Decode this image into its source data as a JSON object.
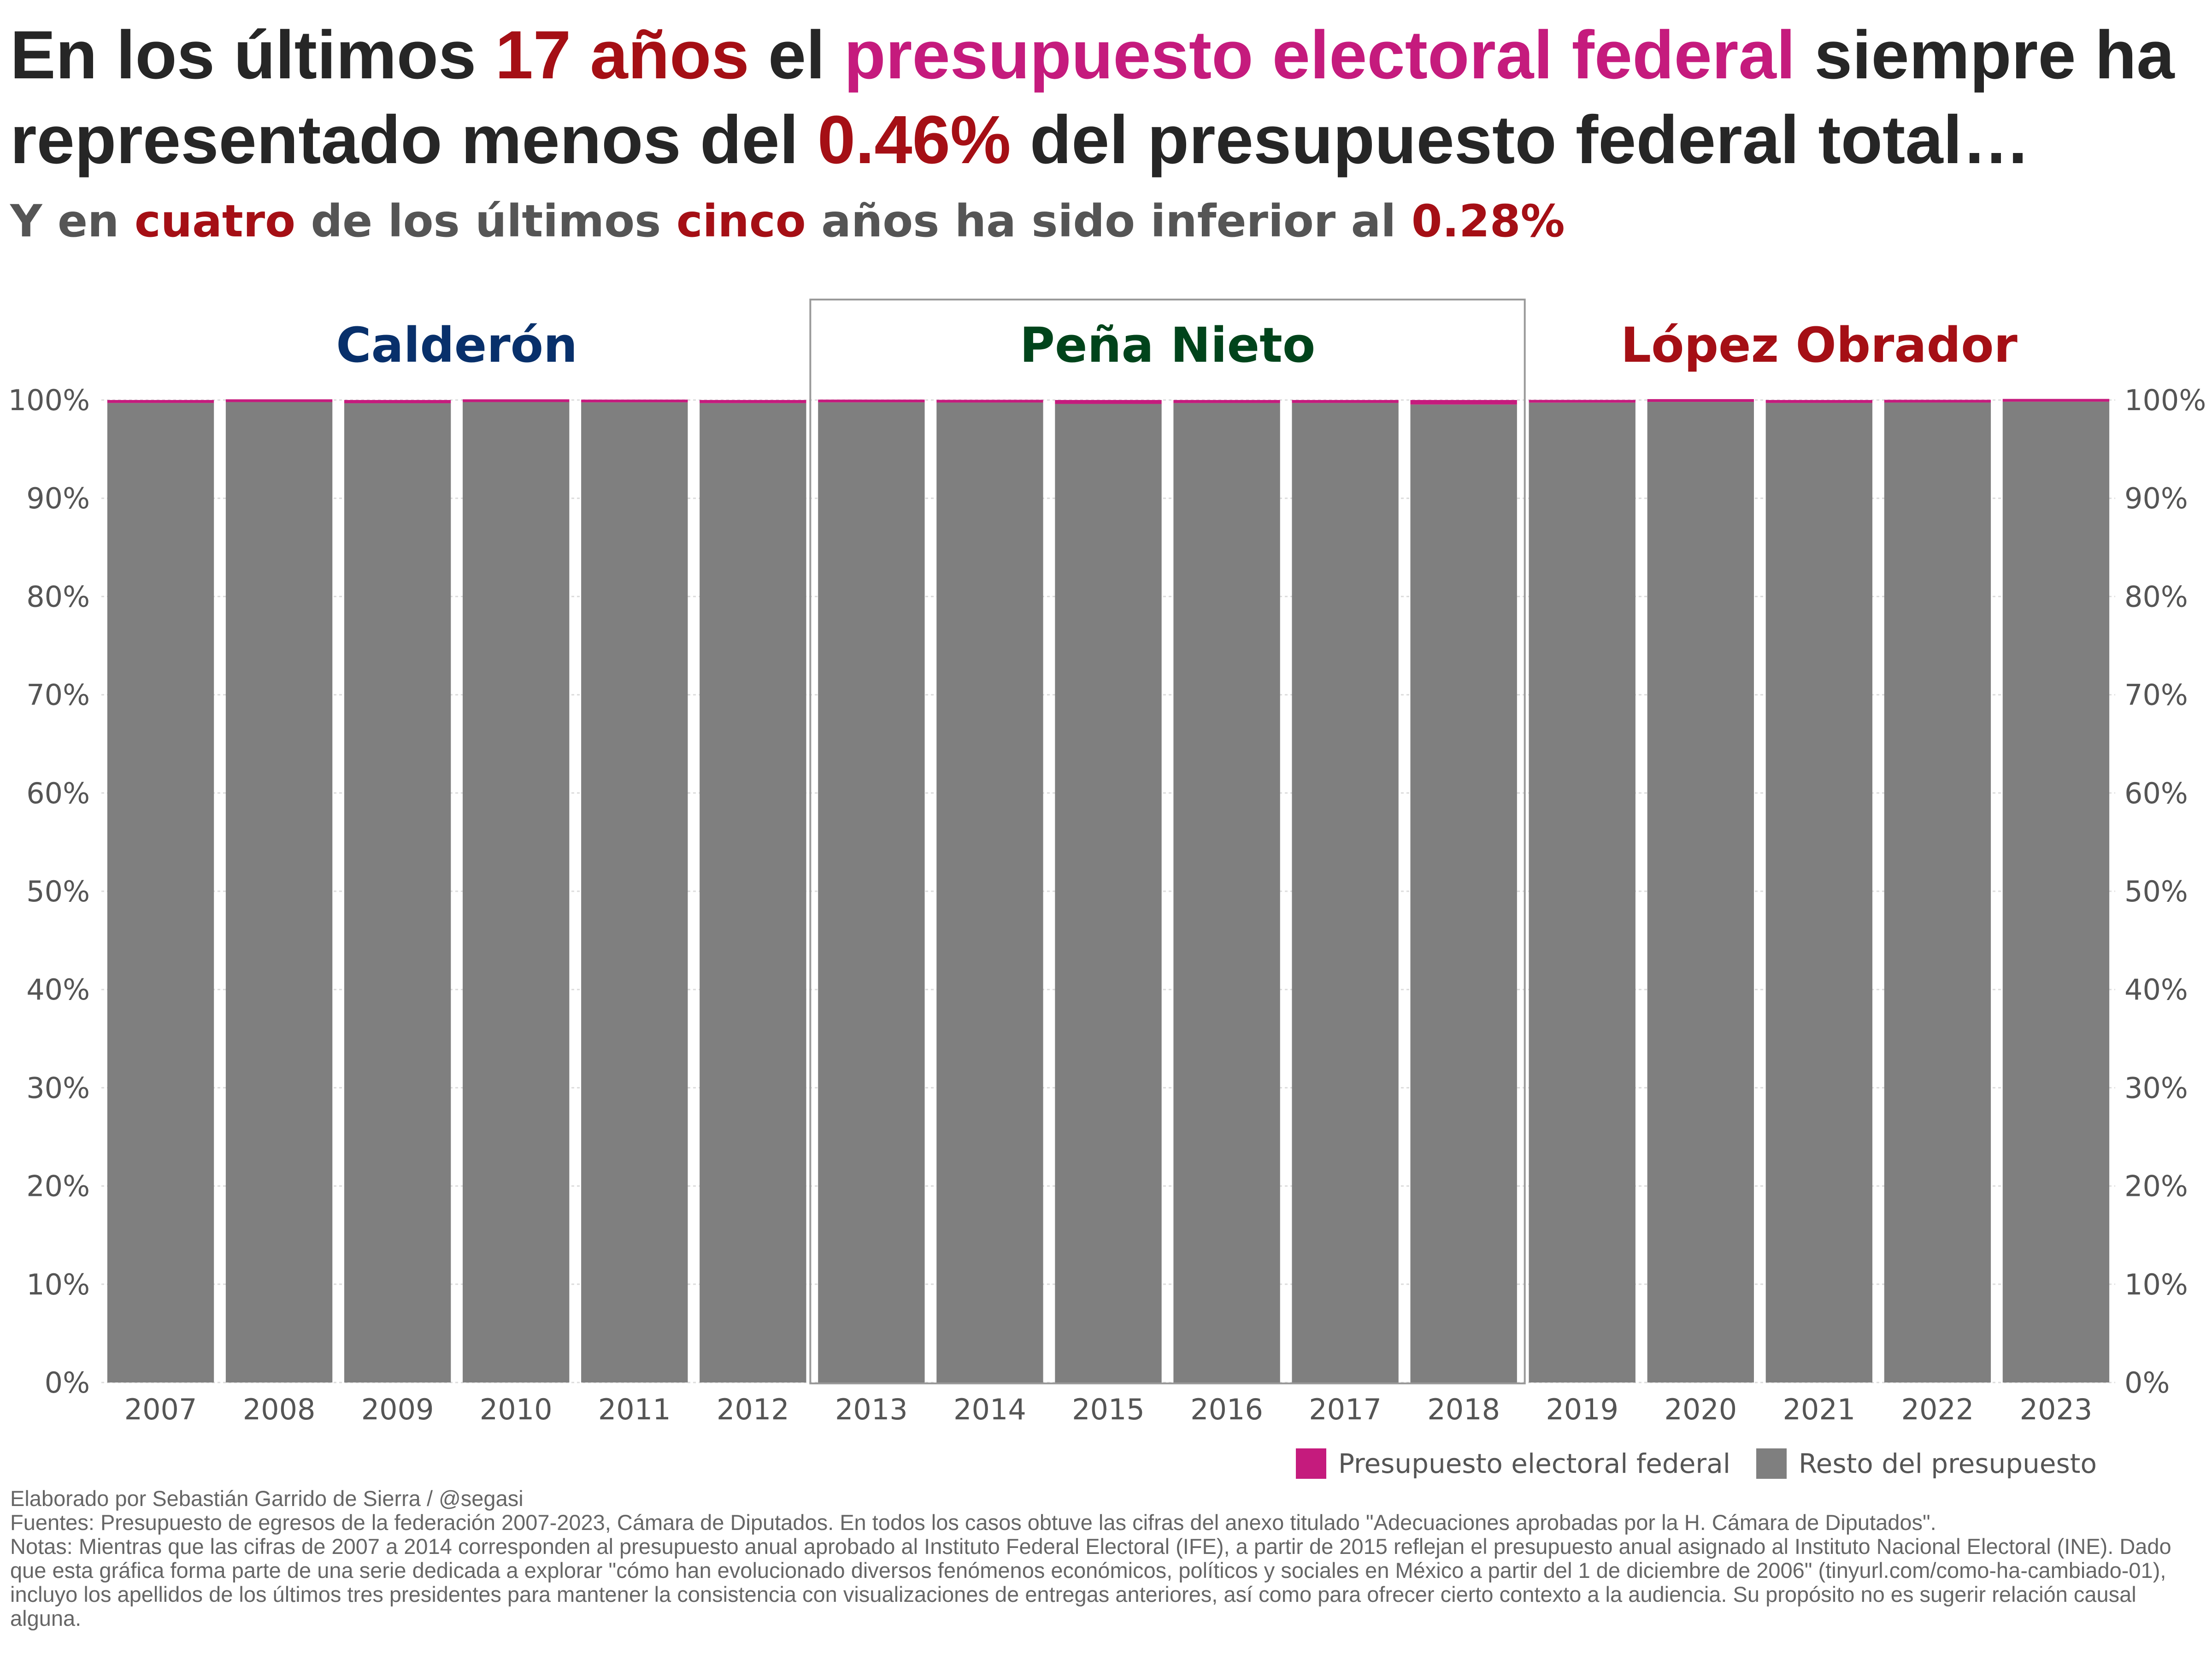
{
  "title": {
    "p1": "En los últimos ",
    "p2": "17 años",
    "p3": " el ",
    "p4": "presupuesto electoral federal",
    "p5": " siempre ha representado menos del ",
    "p6": "0.46%",
    "p7": " del presupuesto federal total…"
  },
  "subtitle": {
    "p1": "Y en ",
    "p2": "cuatro",
    "p3": " de los últimos ",
    "p4": "cinco",
    "p5": " años ha sido inferior al ",
    "p6": "0.28%"
  },
  "colors": {
    "electoral": "#c51b7d",
    "resto": "#7f7f7f",
    "emphasis_red": "#a50f15",
    "calderon": "#08306b",
    "pena_nieto": "#00441b",
    "lopez_obrador": "#a50f15"
  },
  "chart_data": {
    "type": "bar",
    "stacked": true,
    "categories": [
      "2007",
      "2008",
      "2009",
      "2010",
      "2011",
      "2012",
      "2013",
      "2014",
      "2015",
      "2016",
      "2017",
      "2018",
      "2019",
      "2020",
      "2021",
      "2022",
      "2023"
    ],
    "series": [
      {
        "name": "Presupuesto electoral federal",
        "values": [
          0.3,
          0.21,
          0.33,
          0.21,
          0.24,
          0.32,
          0.24,
          0.26,
          0.4,
          0.31,
          0.3,
          0.46,
          0.27,
          0.19,
          0.3,
          0.26,
          0.17
        ]
      },
      {
        "name": "Resto del presupuesto",
        "values": [
          99.7,
          99.79,
          99.67,
          99.79,
          99.76,
          99.68,
          99.76,
          99.74,
          99.6,
          99.69,
          99.7,
          99.54,
          99.73,
          99.81,
          99.7,
          99.74,
          99.83
        ]
      }
    ],
    "ylim": [
      0,
      100
    ],
    "yticks": [
      "0%",
      "10%",
      "20%",
      "30%",
      "40%",
      "50%",
      "60%",
      "70%",
      "80%",
      "90%",
      "100%"
    ],
    "grid": true,
    "legend_position": "bottom-right",
    "periods": [
      {
        "label": "Calderón",
        "years": [
          "2007",
          "2012"
        ]
      },
      {
        "label": "Peña Nieto",
        "years": [
          "2013",
          "2018"
        ]
      },
      {
        "label": "López Obrador",
        "years": [
          "2019",
          "2023"
        ]
      }
    ]
  },
  "legend": {
    "electoral": "Presupuesto electoral federal",
    "resto": "Resto del presupuesto"
  },
  "caption": {
    "credit": "Elaborado por Sebastián Garrido de Sierra / @segasi",
    "sources": "Fuentes: Presupuesto de egresos de la federación 2007-2023, Cámara de Diputados. En todos los casos obtuve las cifras del anexo titulado \"Adecuaciones aprobadas por la H. Cámara de Diputados\".",
    "notes": "Notas: Mientras que las cifras de 2007 a 2014 corresponden al presupuesto anual aprobado al Instituto Federal Electoral (IFE), a partir de 2015 reflejan el presupuesto anual asignado al Instituto Nacional Electoral (INE). Dado que esta gráfica forma parte de una serie dedicada a explorar \"cómo han evolucionado diversos fenómenos económicos, políticos y sociales en México a partir del 1 de diciembre de 2006\" (tinyurl.com/como-ha-cambiado-01), incluyo los apellidos de los últimos tres presidentes para mantener la consistencia con visualizaciones de entregas anteriores, así como para ofrecer cierto contexto a la audiencia. Su propósito no es sugerir relación causal alguna."
  }
}
